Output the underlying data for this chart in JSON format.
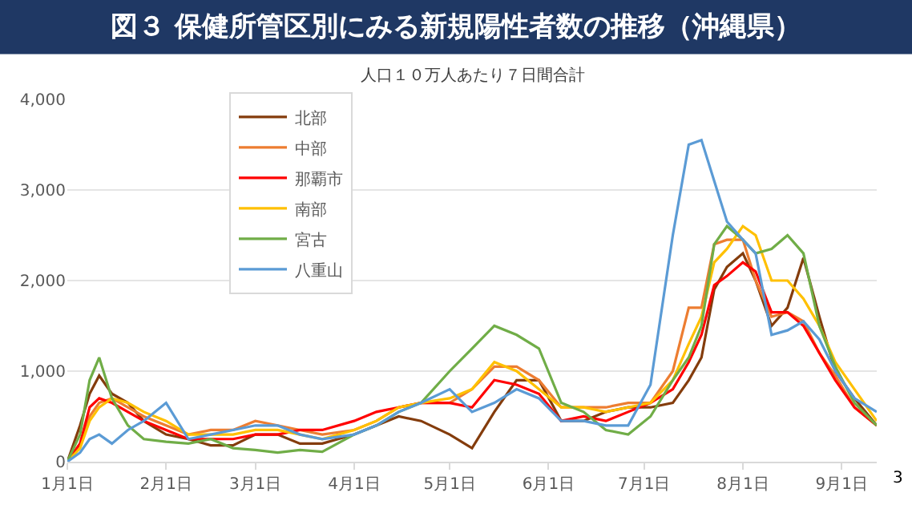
{
  "chart_data": {
    "type": "line",
    "title": "図３ 保健所管区別にみる新規陽性者数の推移（沖縄県）",
    "subtitle": "人口１０万人あたり７日間合計",
    "annotations": [
      "3"
    ],
    "x": [
      "--01-01",
      "--01-05",
      "--01-08",
      "--01-11",
      "--01-15",
      "--01-20",
      "--01-25",
      "--02-01",
      "--02-08",
      "--02-15",
      "--02-22",
      "--03-01",
      "--03-08",
      "--03-15",
      "--03-22",
      "--04-01",
      "--04-08",
      "--04-15",
      "--04-22",
      "--05-01",
      "--05-08",
      "--05-15",
      "--05-22",
      "--05-29",
      "--06-05",
      "--06-12",
      "--06-19",
      "--06-26",
      "--07-03",
      "--07-10",
      "--07-15",
      "--07-19",
      "--07-23",
      "--07-27",
      "--08-01",
      "--08-05",
      "--08-10",
      "--08-15",
      "--08-20",
      "--08-25",
      "--08-30",
      "--09-05",
      "--09-12"
    ],
    "series": [
      {
        "name": "北部",
        "color": "#843c0c",
        "values": [
          0,
          400,
          750,
          950,
          750,
          650,
          450,
          300,
          250,
          180,
          180,
          300,
          300,
          200,
          200,
          300,
          400,
          500,
          450,
          300,
          150,
          550,
          900,
          900,
          450,
          450,
          550,
          600,
          600,
          650,
          900,
          1150,
          1900,
          2150,
          2300,
          2000,
          1500,
          1700,
          2250,
          1600,
          1000,
          700,
          400
        ]
      },
      {
        "name": "中部",
        "color": "#ed7d31",
        "values": [
          0,
          200,
          500,
          650,
          700,
          600,
          500,
          400,
          300,
          350,
          350,
          450,
          400,
          350,
          300,
          350,
          450,
          600,
          650,
          650,
          800,
          1050,
          1050,
          900,
          600,
          600,
          600,
          650,
          650,
          1000,
          1700,
          1700,
          2400,
          2450,
          2450,
          2000,
          1600,
          1650,
          1550,
          1200,
          950,
          600,
          400
        ]
      },
      {
        "name": "那覇市",
        "color": "#ff0000",
        "values": [
          0,
          200,
          600,
          700,
          650,
          550,
          450,
          350,
          250,
          250,
          250,
          300,
          300,
          350,
          350,
          450,
          550,
          600,
          650,
          650,
          600,
          900,
          850,
          750,
          450,
          500,
          450,
          550,
          650,
          800,
          1100,
          1400,
          1950,
          2050,
          2200,
          2100,
          1650,
          1650,
          1500,
          1200,
          900,
          600,
          400
        ]
      },
      {
        "name": "南部",
        "color": "#ffc000",
        "values": [
          0,
          150,
          450,
          600,
          700,
          650,
          550,
          450,
          300,
          300,
          300,
          350,
          350,
          300,
          250,
          350,
          450,
          600,
          650,
          700,
          800,
          1100,
          1000,
          800,
          600,
          600,
          550,
          600,
          650,
          900,
          1300,
          1600,
          2200,
          2350,
          2600,
          2500,
          2000,
          2000,
          1800,
          1500,
          1100,
          800,
          450
        ]
      },
      {
        "name": "宮古",
        "color": "#70ad47",
        "values": [
          0,
          300,
          900,
          1150,
          700,
          400,
          250,
          220,
          200,
          250,
          150,
          130,
          100,
          130,
          110,
          300,
          400,
          550,
          650,
          1000,
          1250,
          1500,
          1400,
          1250,
          650,
          550,
          350,
          300,
          500,
          900,
          1150,
          1500,
          2400,
          2600,
          2450,
          2300,
          2350,
          2500,
          2300,
          1500,
          1050,
          650,
          400
        ]
      },
      {
        "name": "八重山",
        "color": "#5b9bd5",
        "values": [
          0,
          100,
          250,
          300,
          200,
          350,
          450,
          650,
          250,
          300,
          350,
          400,
          400,
          300,
          250,
          300,
          400,
          550,
          650,
          800,
          550,
          650,
          800,
          700,
          450,
          450,
          400,
          400,
          850,
          2500,
          3500,
          3550,
          3100,
          2650,
          2450,
          2300,
          1400,
          1450,
          1550,
          1350,
          1000,
          700,
          550
        ]
      }
    ],
    "xlim": [
      "--01-01",
      "--09-12"
    ],
    "xticks": [
      {
        "value": "--01-01",
        "label": "1月1日"
      },
      {
        "value": "--02-01",
        "label": "2月1日"
      },
      {
        "value": "--03-01",
        "label": "3月1日"
      },
      {
        "value": "--04-01",
        "label": "4月1日"
      },
      {
        "value": "--05-01",
        "label": "5月1日"
      },
      {
        "value": "--06-01",
        "label": "6月1日"
      },
      {
        "value": "--07-01",
        "label": "7月1日"
      },
      {
        "value": "--08-01",
        "label": "8月1日"
      },
      {
        "value": "--09-01",
        "label": "9月1日"
      }
    ],
    "ylim": [
      0,
      4000
    ],
    "yticks": [
      0,
      {
        "value": 1000,
        "label": "1,000"
      },
      {
        "value": 2000,
        "label": "2,000"
      },
      {
        "value": 3000,
        "label": "3,000"
      },
      {
        "value": 4000,
        "label": "4,000"
      }
    ],
    "grid": "y",
    "legend": "top left",
    "marker": "none",
    "line_style": "solid"
  }
}
